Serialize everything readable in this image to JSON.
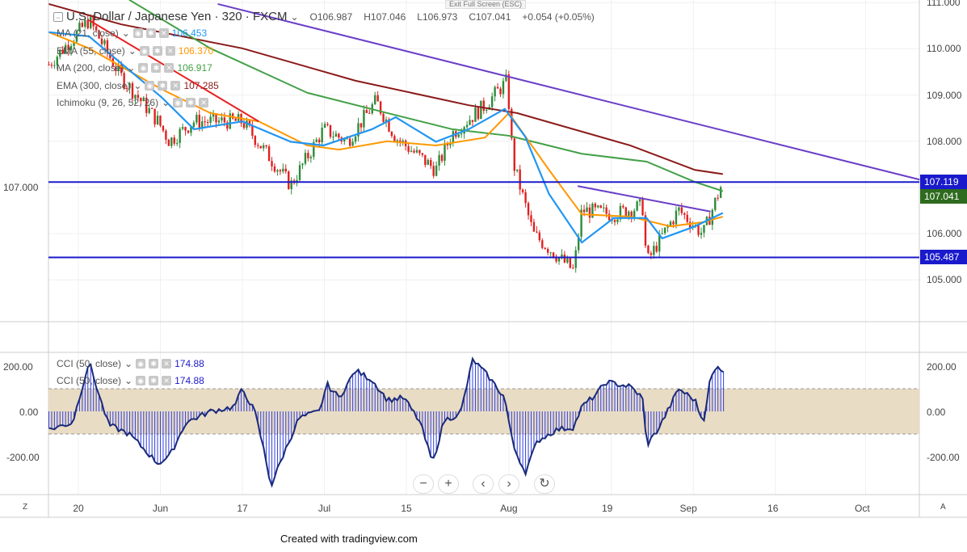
{
  "header": {
    "title": "U.S. Dollar / Japanese Yen · 320 · FXCM",
    "open": "O106.987",
    "high": "H107.046",
    "low": "L106.973",
    "close": "C107.041",
    "change": "+0.054 (+0.05%)",
    "exit_fullscreen": "Exit Full Screen (ESC)"
  },
  "indicators": [
    {
      "label": "MA (21, close)",
      "value": "106.453",
      "color": "#2196f3"
    },
    {
      "label": "EMA (55, close)",
      "value": "106.370",
      "color": "#ff9800"
    },
    {
      "label": "MA (200, close)",
      "value": "106.917",
      "color": "#43a047"
    },
    {
      "label": "EMA (300, close)",
      "value": "107.285",
      "color": "#8b1a1a"
    },
    {
      "label": "Ichimoku (9, 26, 52, 26)",
      "value": "",
      "color": "#999999"
    }
  ],
  "cci_legend": [
    {
      "label": "CCI (50, close)",
      "value": "174.88"
    },
    {
      "label": "CCI (50, close)",
      "value": "174.88"
    }
  ],
  "price_axis": [
    "111.000",
    "110.000",
    "109.000",
    "108.000",
    "107.000",
    "106.000",
    "105.000"
  ],
  "price_badges": {
    "upper_level": "107.119",
    "last_price": "107.041",
    "lower_level": "105.487"
  },
  "cci_axis": [
    "200.00",
    "0.00",
    "-200.00"
  ],
  "time_axis": [
    "20",
    "Jun",
    "17",
    "Jul",
    "15",
    "Aug",
    "19",
    "Sep",
    "16",
    "Oct"
  ],
  "corner": {
    "left": "Z",
    "right": "A"
  },
  "nav_buttons": {
    "zoom_out": "−",
    "zoom_in": "+",
    "scroll_left": "‹",
    "scroll_right": "›",
    "reset": "↻"
  },
  "credit": "Created with tradingview.com",
  "colors": {
    "up": "#2e8b3a",
    "down": "#e02020",
    "level": "#1a1acc",
    "trend": "#6a3fc8",
    "resist": "#e82020",
    "cci": "#1020c0",
    "band": "#e9dcc4"
  },
  "chart_data": {
    "type": "candlestick",
    "title": "U.S. Dollar / Japanese Yen · 320 · FXCM",
    "x_unit": "trading days from May 20",
    "ylim": [
      104.3,
      111.1
    ],
    "close_path": [
      [
        -3.6,
        109.66
      ],
      [
        1.3,
        110.62
      ],
      [
        5.2,
        109.4
      ],
      [
        9.7,
        108.43
      ],
      [
        11.1,
        108.0
      ],
      [
        14.1,
        108.43
      ],
      [
        20,
        108.43
      ],
      [
        23,
        107.73
      ],
      [
        25.9,
        107.05
      ],
      [
        29.9,
        108.26
      ],
      [
        32.8,
        108.0
      ],
      [
        36.3,
        108.87
      ],
      [
        38.7,
        108.08
      ],
      [
        43.6,
        107.38
      ],
      [
        45.6,
        108.17
      ],
      [
        49.6,
        108.78
      ],
      [
        52.3,
        109.31
      ],
      [
        53,
        107.56
      ],
      [
        55.5,
        105.99
      ],
      [
        60.4,
        105.2
      ],
      [
        61.4,
        106.51
      ],
      [
        65.3,
        106.42
      ],
      [
        68.8,
        106.6
      ],
      [
        69.3,
        105.37
      ],
      [
        70.7,
        105.81
      ],
      [
        73.2,
        106.51
      ],
      [
        76.2,
        105.99
      ],
      [
        78.4,
        107.04
      ]
    ],
    "ma21": [
      [
        -3.6,
        110.36
      ],
      [
        1.3,
        110.27
      ],
      [
        10.1,
        108.96
      ],
      [
        14.1,
        108.26
      ],
      [
        20,
        108.43
      ],
      [
        25.9,
        107.99
      ],
      [
        29.9,
        107.91
      ],
      [
        35.8,
        108.26
      ],
      [
        38.7,
        108.52
      ],
      [
        43.6,
        107.99
      ],
      [
        47.6,
        108.26
      ],
      [
        52,
        108.7
      ],
      [
        54.5,
        108.1
      ],
      [
        57.4,
        106.86
      ],
      [
        61.4,
        105.81
      ],
      [
        65.3,
        106.34
      ],
      [
        69.3,
        106.34
      ],
      [
        71.2,
        105.9
      ],
      [
        75.2,
        106.16
      ],
      [
        78.6,
        106.45
      ]
    ],
    "ema55": [
      [
        -3.6,
        110.36
      ],
      [
        1.3,
        110.01
      ],
      [
        10.1,
        109.13
      ],
      [
        16.1,
        108.61
      ],
      [
        22,
        108.43
      ],
      [
        27.9,
        107.91
      ],
      [
        31.8,
        107.82
      ],
      [
        37.7,
        108.0
      ],
      [
        43.6,
        107.91
      ],
      [
        49.6,
        108.08
      ],
      [
        52.5,
        108.61
      ],
      [
        57.4,
        107.38
      ],
      [
        61.4,
        106.42
      ],
      [
        67.3,
        106.37
      ],
      [
        72.2,
        106.16
      ],
      [
        76.2,
        106.25
      ],
      [
        78.6,
        106.37
      ]
    ],
    "sma200": [
      [
        6.2,
        111.06
      ],
      [
        16.1,
        110.01
      ],
      [
        27.9,
        109.05
      ],
      [
        37.7,
        108.61
      ],
      [
        45.6,
        108.26
      ],
      [
        52.5,
        108.12
      ],
      [
        61.4,
        107.73
      ],
      [
        69.3,
        107.56
      ],
      [
        75.2,
        107.12
      ],
      [
        78.6,
        106.92
      ]
    ],
    "ema300": [
      [
        -3.6,
        110.97
      ],
      [
        5.2,
        110.53
      ],
      [
        20,
        110.01
      ],
      [
        33.8,
        109.31
      ],
      [
        47.6,
        108.78
      ],
      [
        53.5,
        108.61
      ],
      [
        67.3,
        107.91
      ],
      [
        75.2,
        107.38
      ],
      [
        78.6,
        107.29
      ]
    ],
    "levels": [
      107.119,
      105.487
    ],
    "trendlines": [
      {
        "name": "descending-trendline",
        "from": [
          17,
          110.97
        ],
        "to": [
          102.6,
          107.17
        ]
      },
      {
        "name": "resistance-line",
        "from": [
          1.3,
          110.62
        ],
        "to": [
          22,
          108.43
        ]
      },
      {
        "name": "neckline",
        "from": [
          60.9,
          107.03
        ],
        "to": [
          77.1,
          106.48
        ]
      }
    ],
    "cci": {
      "ylim": [
        -360,
        260
      ],
      "band": [
        -100,
        100
      ],
      "points": [
        [
          -3.6,
          -80
        ],
        [
          -0.7,
          -50
        ],
        [
          1.3,
          220
        ],
        [
          2.8,
          40
        ],
        [
          3.7,
          -60
        ],
        [
          6.2,
          -100
        ],
        [
          9.7,
          -230
        ],
        [
          11.1,
          -200
        ],
        [
          13.1,
          -50
        ],
        [
          16.1,
          0
        ],
        [
          19,
          20
        ],
        [
          20,
          100
        ],
        [
          21.5,
          0
        ],
        [
          22.5,
          -150
        ],
        [
          23.5,
          -330
        ],
        [
          24.9,
          -200
        ],
        [
          26.9,
          -30
        ],
        [
          29.4,
          0
        ],
        [
          30.3,
          120
        ],
        [
          31.8,
          60
        ],
        [
          33.8,
          180
        ],
        [
          35.8,
          140
        ],
        [
          37.7,
          50
        ],
        [
          39.7,
          60
        ],
        [
          41.7,
          -50
        ],
        [
          43.2,
          -230
        ],
        [
          44.6,
          -40
        ],
        [
          46.6,
          -10
        ],
        [
          48.1,
          230
        ],
        [
          50.1,
          150
        ],
        [
          52,
          60
        ],
        [
          53,
          -150
        ],
        [
          54.5,
          -270
        ],
        [
          56,
          -130
        ],
        [
          58.4,
          -80
        ],
        [
          60.4,
          -70
        ],
        [
          61.4,
          20
        ],
        [
          63.3,
          80
        ],
        [
          64.3,
          130
        ],
        [
          67.3,
          110
        ],
        [
          68.8,
          60
        ],
        [
          69.3,
          -150
        ],
        [
          70.7,
          -80
        ],
        [
          71.7,
          -10
        ],
        [
          73.2,
          100
        ],
        [
          75.2,
          50
        ],
        [
          76.2,
          -50
        ],
        [
          77.1,
          150
        ],
        [
          78.1,
          200
        ],
        [
          78.8,
          175
        ]
      ]
    }
  }
}
